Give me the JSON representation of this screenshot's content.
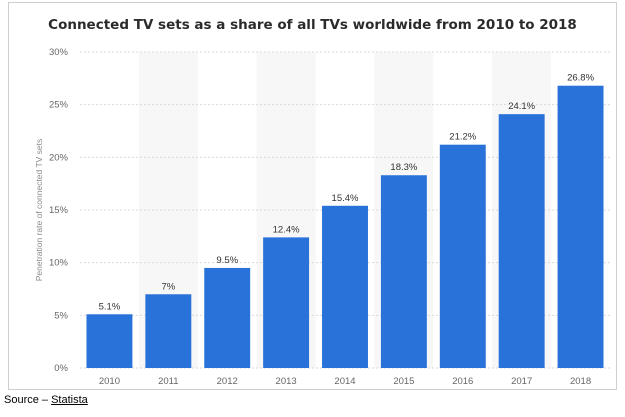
{
  "chart_data": {
    "type": "bar",
    "title": "Connected TV sets as a share of all TVs worldwide from 2010 to 2018",
    "ylabel": "Penetration rate of connected TV sets",
    "xlabel": "",
    "categories": [
      "2010",
      "2011",
      "2012",
      "2013",
      "2014",
      "2015",
      "2016",
      "2017",
      "2018"
    ],
    "values": [
      5.1,
      7,
      9.5,
      12.4,
      15.4,
      18.3,
      21.2,
      24.1,
      26.8
    ],
    "data_labels": [
      "5.1%",
      "7%",
      "9.5%",
      "12.4%",
      "15.4%",
      "18.3%",
      "21.2%",
      "24.1%",
      "26.8%"
    ],
    "ylim": [
      0,
      30
    ],
    "yticks": [
      0,
      5,
      10,
      15,
      20,
      25,
      30
    ],
    "ytick_labels": [
      "0%",
      "5%",
      "10%",
      "15%",
      "20%",
      "25%",
      "30%"
    ],
    "grid": true,
    "legend": "none",
    "bar_color": "#2872d9",
    "colors": {
      "alt_band": "#f7f7f7",
      "grid": "#d9d9d9"
    }
  },
  "source": {
    "prefix": "Source – ",
    "name": "Statista"
  }
}
